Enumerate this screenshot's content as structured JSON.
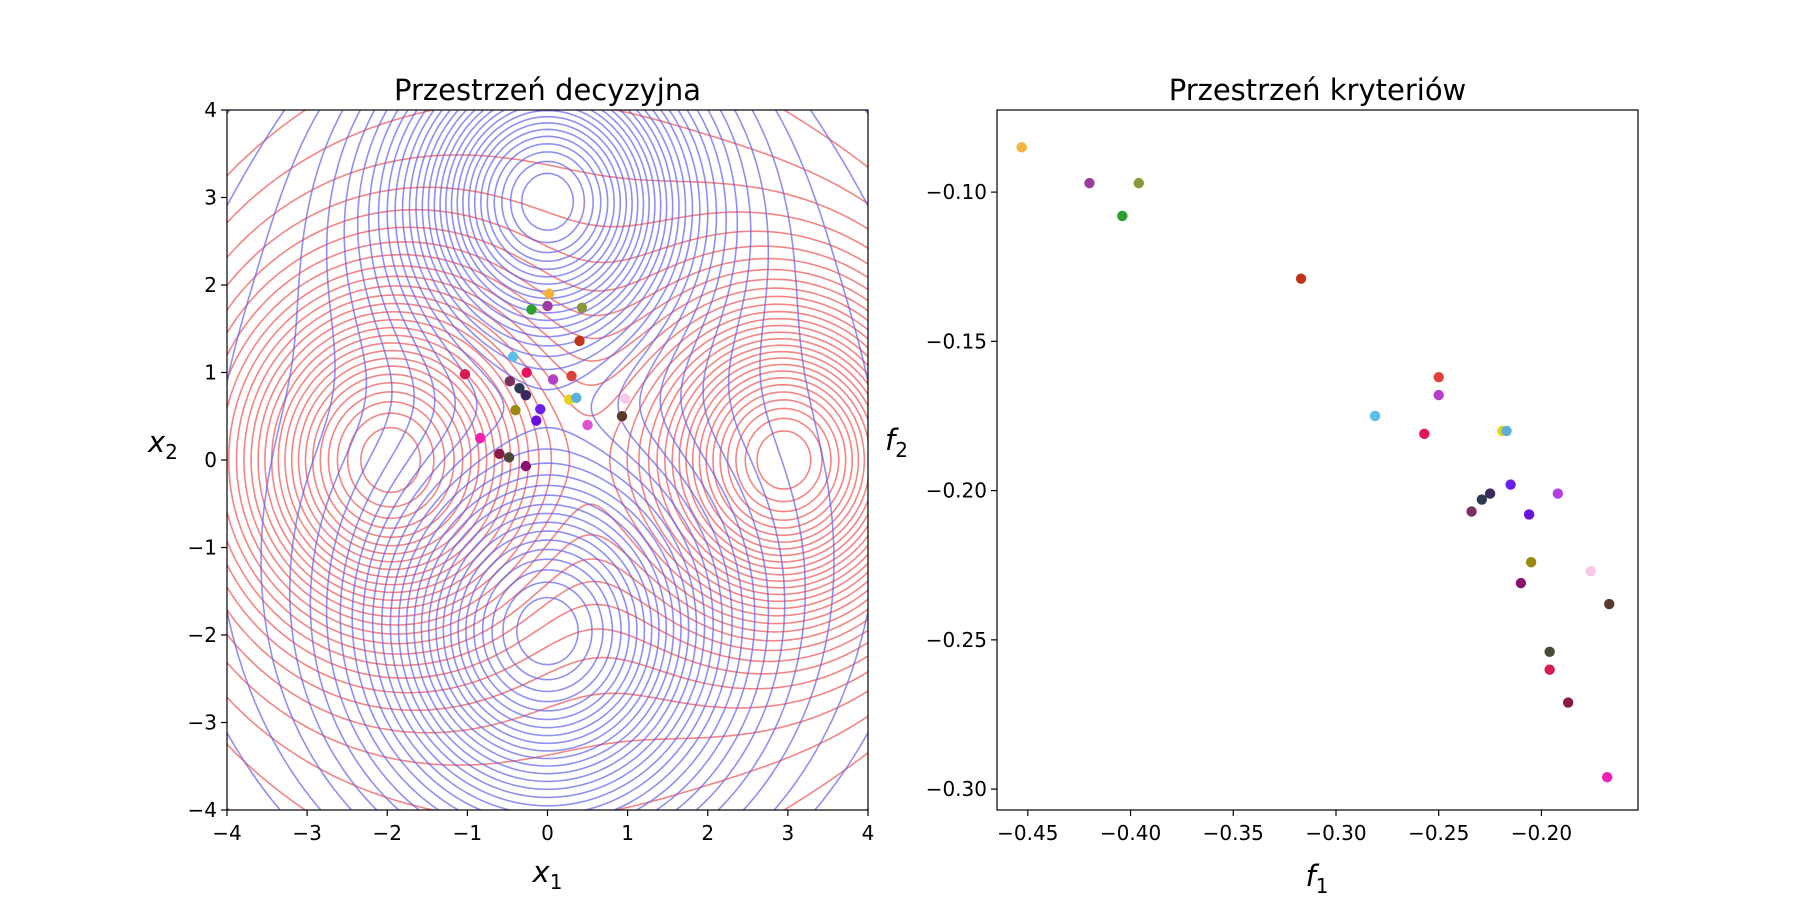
{
  "colors": {
    "f1_contour": "#6060ee",
    "f2_contour": "#f05050",
    "f1_label": "#0000ff",
    "f2_label": "#ff0000"
  },
  "chart_data": [
    {
      "type": "scatter",
      "title": "Przestrzeń decyzyjna",
      "xlabel": "x1",
      "ylabel": "x2",
      "xlim": [
        -4,
        4
      ],
      "ylim": [
        -4,
        4
      ],
      "xticks": [
        -4,
        -3,
        -2,
        -1,
        0,
        1,
        2,
        3,
        4
      ],
      "yticks": [
        -4,
        -3,
        -2,
        -1,
        0,
        1,
        2,
        3,
        4
      ],
      "xtick_labels": [
        "−4",
        "−3",
        "−2",
        "−1",
        "0",
        "1",
        "2",
        "3",
        "4"
      ],
      "ytick_labels": [
        "−4",
        "−3",
        "−2",
        "−1",
        "0",
        "1",
        "2",
        "3",
        "4"
      ],
      "grid": false,
      "background_contours": [
        {
          "function": "f1",
          "color": "blue",
          "minima": [
            [
              0,
              3
            ],
            [
              0,
              -2
            ]
          ]
        },
        {
          "function": "f2",
          "color": "red",
          "minima": [
            [
              -2,
              0
            ],
            [
              3,
              0
            ]
          ]
        }
      ],
      "points": [
        {
          "x": 0.02,
          "y": 1.9,
          "color": "#f5b33e"
        },
        {
          "x": 0.0,
          "y": 1.76,
          "color": "#9b3aa0"
        },
        {
          "x": 0.43,
          "y": 1.74,
          "color": "#8a9a3a"
        },
        {
          "x": -0.2,
          "y": 1.72,
          "color": "#2ca02c"
        },
        {
          "x": 0.4,
          "y": 1.36,
          "color": "#c0351a"
        },
        {
          "x": -0.43,
          "y": 1.18,
          "color": "#5bc0e8"
        },
        {
          "x": -0.26,
          "y": 1.0,
          "color": "#e0155e"
        },
        {
          "x": -1.03,
          "y": 0.98,
          "color": "#d81b50"
        },
        {
          "x": 0.3,
          "y": 0.96,
          "color": "#e0403a"
        },
        {
          "x": 0.07,
          "y": 0.92,
          "color": "#b540c8"
        },
        {
          "x": -0.47,
          "y": 0.9,
          "color": "#7a3060"
        },
        {
          "x": -0.35,
          "y": 0.82,
          "color": "#2a3a50"
        },
        {
          "x": -0.27,
          "y": 0.74,
          "color": "#3a2a60"
        },
        {
          "x": 0.27,
          "y": 0.69,
          "color": "#e6d020"
        },
        {
          "x": 0.36,
          "y": 0.71,
          "color": "#5ab0d8"
        },
        {
          "x": 0.97,
          "y": 0.7,
          "color": "#f8c8e8"
        },
        {
          "x": -0.09,
          "y": 0.58,
          "color": "#6a20e8"
        },
        {
          "x": -0.4,
          "y": 0.57,
          "color": "#9a8a10"
        },
        {
          "x": 0.93,
          "y": 0.5,
          "color": "#5a3a2a"
        },
        {
          "x": -0.14,
          "y": 0.45,
          "color": "#6a10e0"
        },
        {
          "x": 0.5,
          "y": 0.4,
          "color": "#e050d0"
        },
        {
          "x": -0.84,
          "y": 0.25,
          "color": "#f020b0"
        },
        {
          "x": -0.6,
          "y": 0.07,
          "color": "#8a1a48"
        },
        {
          "x": -0.48,
          "y": 0.03,
          "color": "#4a4a38"
        },
        {
          "x": -0.27,
          "y": -0.07,
          "color": "#8a1070"
        }
      ]
    },
    {
      "type": "scatter",
      "title": "Przestrzeń kryteriów",
      "xlabel": "f1",
      "ylabel": "f2",
      "xlim": [
        -0.465,
        -0.153
      ],
      "ylim": [
        -0.307,
        -0.0725
      ],
      "xticks": [
        -0.45,
        -0.4,
        -0.35,
        -0.3,
        -0.25,
        -0.2
      ],
      "yticks": [
        -0.1,
        -0.15,
        -0.2,
        -0.25,
        -0.3
      ],
      "xtick_labels": [
        "−0.45",
        "−0.40",
        "−0.35",
        "−0.30",
        "−0.25",
        "−0.20"
      ],
      "ytick_labels": [
        "−0.10",
        "−0.15",
        "−0.20",
        "−0.25",
        "−0.30"
      ],
      "grid": false,
      "points": [
        {
          "x": -0.453,
          "y": -0.085,
          "color": "#f5b33e"
        },
        {
          "x": -0.42,
          "y": -0.097,
          "color": "#9b3aa0"
        },
        {
          "x": -0.396,
          "y": -0.097,
          "color": "#8a9a3a"
        },
        {
          "x": -0.404,
          "y": -0.108,
          "color": "#2ca02c"
        },
        {
          "x": -0.317,
          "y": -0.129,
          "color": "#c0351a"
        },
        {
          "x": -0.25,
          "y": -0.162,
          "color": "#e0403a"
        },
        {
          "x": -0.25,
          "y": -0.168,
          "color": "#b540c8"
        },
        {
          "x": -0.281,
          "y": -0.175,
          "color": "#5bc0e8"
        },
        {
          "x": -0.257,
          "y": -0.181,
          "color": "#e0155e"
        },
        {
          "x": -0.219,
          "y": -0.18,
          "color": "#e6d020"
        },
        {
          "x": -0.217,
          "y": -0.18,
          "color": "#5ab0d8"
        },
        {
          "x": -0.215,
          "y": -0.198,
          "color": "#6a20e8"
        },
        {
          "x": -0.192,
          "y": -0.201,
          "color": "#b540e0"
        },
        {
          "x": -0.225,
          "y": -0.201,
          "color": "#3a2a60"
        },
        {
          "x": -0.229,
          "y": -0.203,
          "color": "#2a3a50"
        },
        {
          "x": -0.234,
          "y": -0.207,
          "color": "#7a3060"
        },
        {
          "x": -0.206,
          "y": -0.208,
          "color": "#6a10e0"
        },
        {
          "x": -0.205,
          "y": -0.224,
          "color": "#9a8a10"
        },
        {
          "x": -0.176,
          "y": -0.227,
          "color": "#f8c8e8"
        },
        {
          "x": -0.21,
          "y": -0.231,
          "color": "#8a1070"
        },
        {
          "x": -0.167,
          "y": -0.238,
          "color": "#5a3a2a"
        },
        {
          "x": -0.196,
          "y": -0.254,
          "color": "#4a4a38"
        },
        {
          "x": -0.196,
          "y": -0.26,
          "color": "#d81b50"
        },
        {
          "x": -0.187,
          "y": -0.271,
          "color": "#8a1a48"
        },
        {
          "x": -0.168,
          "y": -0.296,
          "color": "#f020b0"
        }
      ]
    }
  ]
}
